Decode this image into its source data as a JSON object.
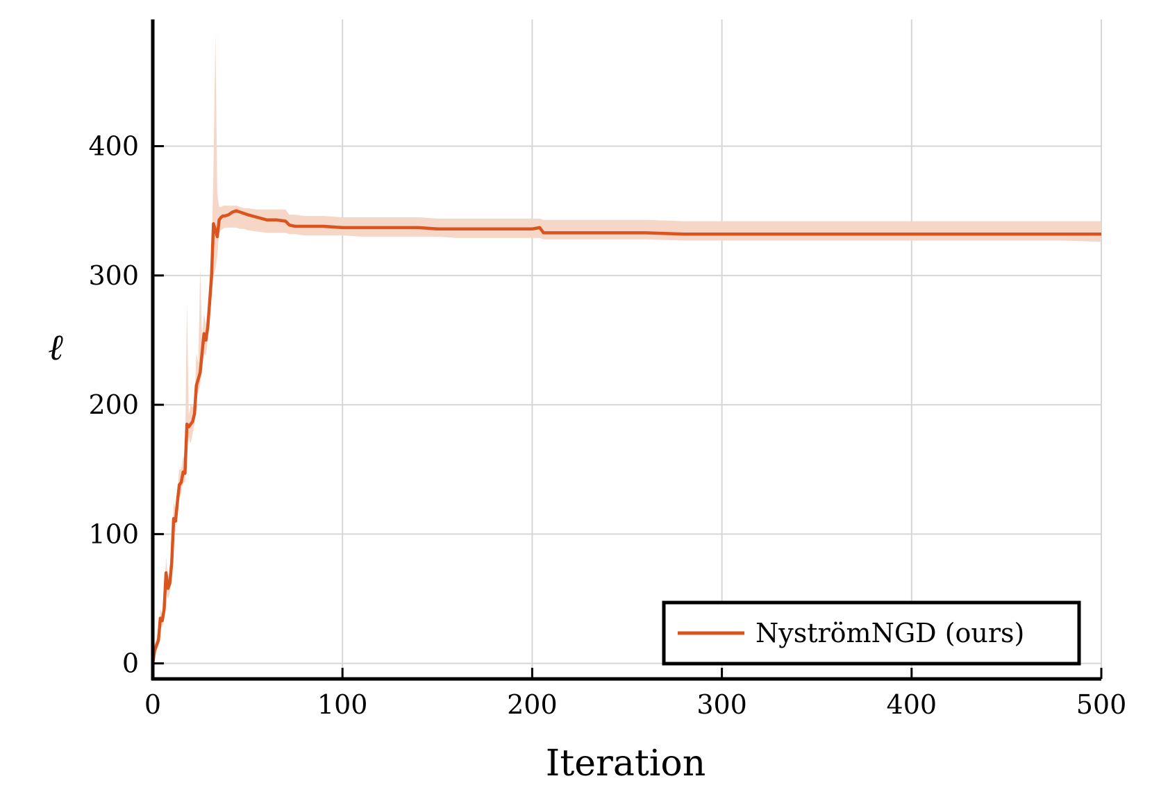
{
  "chart_data": {
    "type": "line",
    "title": "",
    "xlabel": "Iteration",
    "ylabel": "ℓ",
    "xlim": [
      0,
      500
    ],
    "ylim": [
      -12,
      498
    ],
    "xticks": [
      0,
      100,
      200,
      300,
      400,
      500
    ],
    "yticks": [
      0,
      100,
      200,
      300,
      400
    ],
    "grid": true,
    "legend": {
      "position": "bottom-right"
    },
    "colors": {
      "line": "#d9541f",
      "band": "#f6d6c6"
    },
    "series": [
      {
        "name": "NyströmNGD (ours)",
        "x": [
          0,
          1,
          2,
          3,
          4,
          5,
          6,
          7,
          8,
          9,
          10,
          11,
          12,
          13,
          14,
          15,
          16,
          17,
          18,
          19,
          20,
          21,
          22,
          23,
          24,
          25,
          26,
          27,
          28,
          29,
          30,
          31,
          32,
          33,
          34,
          35,
          36,
          37,
          38,
          40,
          42,
          44,
          46,
          48,
          50,
          55,
          60,
          65,
          70,
          72,
          75,
          80,
          90,
          100,
          110,
          120,
          130,
          140,
          150,
          160,
          170,
          180,
          190,
          200,
          204,
          206,
          220,
          240,
          260,
          280,
          300,
          320,
          340,
          360,
          380,
          400,
          420,
          440,
          460,
          480,
          500
        ],
        "y": [
          0,
          10,
          14,
          18,
          35,
          33,
          42,
          70,
          58,
          62,
          78,
          112,
          110,
          125,
          138,
          140,
          148,
          147,
          185,
          183,
          185,
          187,
          193,
          215,
          220,
          225,
          240,
          255,
          250,
          260,
          280,
          300,
          340,
          335,
          330,
          343,
          345,
          346,
          346,
          347,
          349,
          350,
          349,
          348,
          347,
          345,
          343,
          343,
          342,
          339,
          338,
          338,
          338,
          337,
          337,
          337,
          337,
          337,
          336,
          336,
          336,
          336,
          336,
          336,
          337,
          333,
          333,
          333,
          333,
          332,
          332,
          332,
          332,
          332,
          332,
          332,
          332,
          332,
          332,
          332,
          332
        ],
        "lower": [
          0,
          5,
          10,
          14,
          28,
          28,
          35,
          55,
          50,
          55,
          70,
          100,
          102,
          115,
          128,
          132,
          140,
          140,
          165,
          175,
          170,
          178,
          185,
          205,
          210,
          215,
          230,
          240,
          238,
          250,
          270,
          285,
          300,
          305,
          315,
          333,
          335,
          336,
          337,
          337,
          337,
          337,
          336,
          336,
          335,
          334,
          333,
          333,
          333,
          332,
          332,
          331,
          331,
          331,
          330,
          330,
          330,
          330,
          330,
          329,
          329,
          329,
          329,
          329,
          329,
          328,
          328,
          328,
          328,
          327,
          327,
          327,
          327,
          327,
          327,
          327,
          327,
          327,
          327,
          327,
          326
        ],
        "upper": [
          0,
          15,
          19,
          22,
          42,
          38,
          50,
          82,
          66,
          72,
          88,
          125,
          120,
          135,
          150,
          150,
          160,
          158,
          280,
          192,
          200,
          198,
          202,
          240,
          232,
          306,
          252,
          270,
          262,
          272,
          292,
          318,
          380,
          488,
          364,
          353,
          353,
          354,
          354,
          354,
          354,
          354,
          353,
          352,
          352,
          351,
          351,
          351,
          351,
          347,
          347,
          346,
          346,
          345,
          345,
          345,
          345,
          345,
          344,
          344,
          344,
          344,
          344,
          344,
          344,
          343,
          343,
          343,
          343,
          342,
          342,
          342,
          342,
          342,
          342,
          342,
          342,
          342,
          342,
          342,
          342
        ]
      }
    ]
  }
}
